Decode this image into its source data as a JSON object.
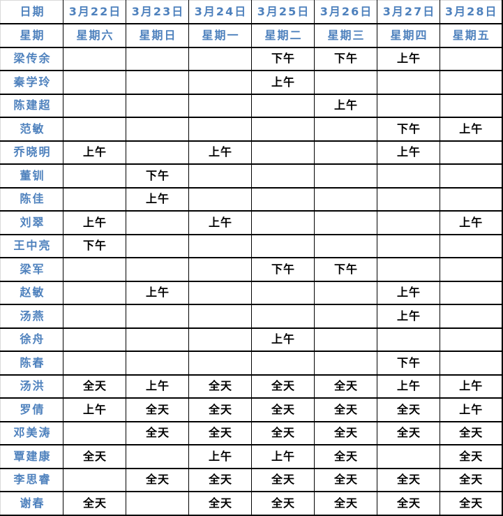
{
  "table": {
    "corner": {
      "date_label": "日期",
      "week_label": "星期"
    },
    "days": [
      {
        "date": "3月22日",
        "weekday": "星期六"
      },
      {
        "date": "3月23日",
        "weekday": "星期日"
      },
      {
        "date": "3月24日",
        "weekday": "星期一"
      },
      {
        "date": "3月25日",
        "weekday": "星期二"
      },
      {
        "date": "3月26日",
        "weekday": "星期三"
      },
      {
        "date": "3月27日",
        "weekday": "星期四"
      },
      {
        "date": "3月28日",
        "weekday": "星期五"
      }
    ],
    "rows": [
      {
        "name": "梁传余",
        "cells": [
          "",
          "",
          "",
          "下午",
          "下午",
          "上午",
          ""
        ]
      },
      {
        "name": "秦学玲",
        "cells": [
          "",
          "",
          "",
          "上午",
          "",
          "",
          ""
        ]
      },
      {
        "name": "陈建超",
        "cells": [
          "",
          "",
          "",
          "",
          "上午",
          "",
          ""
        ]
      },
      {
        "name": "范敏",
        "cells": [
          "",
          "",
          "",
          "",
          "",
          "下午",
          "上午"
        ]
      },
      {
        "name": "乔晓明",
        "cells": [
          "上午",
          "",
          "上午",
          "",
          "",
          "上午",
          ""
        ]
      },
      {
        "name": "董钏",
        "cells": [
          "",
          "下午",
          "",
          "",
          "",
          "",
          ""
        ]
      },
      {
        "name": "陈佳",
        "cells": [
          "",
          "上午",
          "",
          "",
          "",
          "",
          ""
        ]
      },
      {
        "name": "刘翠",
        "cells": [
          "上午",
          "",
          "上午",
          "",
          "",
          "",
          "上午"
        ]
      },
      {
        "name": "王中亮",
        "cells": [
          "下午",
          "",
          "",
          "",
          "",
          "",
          ""
        ]
      },
      {
        "name": "梁军",
        "cells": [
          "",
          "",
          "",
          "下午",
          "下午",
          "",
          ""
        ]
      },
      {
        "name": "赵敏",
        "cells": [
          "",
          "上午",
          "",
          "",
          "",
          "上午",
          ""
        ]
      },
      {
        "name": "汤燕",
        "cells": [
          "",
          "",
          "",
          "",
          "",
          "上午",
          ""
        ]
      },
      {
        "name": "徐舟",
        "cells": [
          "",
          "",
          "",
          "上午",
          "",
          "",
          ""
        ]
      },
      {
        "name": "陈春",
        "cells": [
          "",
          "",
          "",
          "",
          "",
          "下午",
          ""
        ]
      },
      {
        "name": "汤洪",
        "cells": [
          "全天",
          "上午",
          "全天",
          "全天",
          "全天",
          "上午",
          "上午"
        ]
      },
      {
        "name": "罗倩",
        "cells": [
          "上午",
          "全天",
          "全天",
          "全天",
          "全天",
          "全天",
          "上午"
        ]
      },
      {
        "name": "邓美涛",
        "cells": [
          "",
          "全天",
          "全天",
          "全天",
          "全天",
          "全天",
          "全天"
        ]
      },
      {
        "name": "覃建康",
        "cells": [
          "全天",
          "",
          "上午",
          "上午",
          "全天",
          "",
          "全天"
        ]
      },
      {
        "name": "李思睿",
        "cells": [
          "",
          "全天",
          "全天",
          "全天",
          "全天",
          "全天",
          "全天"
        ]
      },
      {
        "name": "谢春",
        "cells": [
          "全天",
          "",
          "全天",
          "全天",
          "全天",
          "全天",
          "全天"
        ]
      }
    ]
  },
  "colors": {
    "header_text": "#4e81bd",
    "entry_text": "#000000",
    "grid_line": "#000000",
    "outer_line": "#d9d9d9",
    "background": "#ffffff"
  }
}
